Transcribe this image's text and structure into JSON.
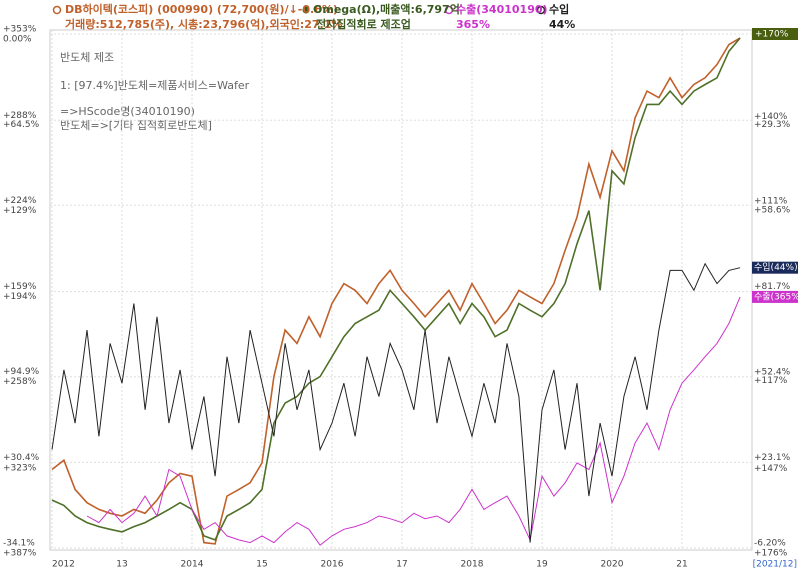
{
  "chart_data": {
    "type": "line",
    "annotations": [
      "반도체 제조",
      "1: [97.4%]반도체=제품서비스=Wafer",
      "=>HScode명(34010190)",
      "반도체=>[기타 집적회로반도체]"
    ],
    "period_label": "[2021/12]",
    "x": [
      2012,
      2012.17,
      2012.33,
      2012.5,
      2012.67,
      2012.83,
      2013,
      2013.17,
      2013.33,
      2013.5,
      2013.67,
      2013.83,
      2014,
      2014.17,
      2014.33,
      2014.5,
      2014.67,
      2014.83,
      2015,
      2015.17,
      2015.33,
      2015.5,
      2015.67,
      2015.83,
      2016,
      2016.17,
      2016.33,
      2016.5,
      2016.67,
      2016.83,
      2017,
      2017.17,
      2017.33,
      2017.5,
      2017.67,
      2017.83,
      2018,
      2018.17,
      2018.33,
      2018.5,
      2018.67,
      2018.83,
      2019,
      2019.17,
      2019.33,
      2019.5,
      2019.67,
      2019.83,
      2020,
      2020.17,
      2020.33,
      2020.5,
      2020.67,
      2020.83,
      2021,
      2021.17,
      2021.33,
      2021.5,
      2021.67,
      2021.83
    ],
    "xlim": [
      2012,
      2022
    ],
    "xticks": [
      2012,
      {
        "value": 2013,
        "label": "13"
      },
      2014,
      {
        "value": 2015,
        "label": "15"
      },
      2016,
      {
        "value": 2017,
        "label": "17"
      },
      2018,
      {
        "value": 2019,
        "label": "19"
      },
      2020,
      {
        "value": 2021,
        "label": "21"
      }
    ],
    "ylim": [
      -34.1,
      353
    ],
    "yticks": [
      {
        "value": -34.1,
        "label": "-34.1%"
      },
      {
        "value": 30.4,
        "label": "+30.4%"
      },
      {
        "value": 94.9,
        "label": "+94.9%"
      },
      {
        "value": 159,
        "label": "+159%"
      },
      {
        "value": 224,
        "label": "+224%"
      },
      {
        "value": 288,
        "label": "+288%"
      },
      {
        "value": 353,
        "label": "+353%"
      }
    ],
    "y2lim": [
      387,
      0
    ],
    "y2ticks": [
      {
        "value": 387,
        "label": "+387%"
      },
      {
        "value": 323,
        "label": "+323%"
      },
      {
        "value": 258,
        "label": "+258%"
      },
      {
        "value": 194,
        "label": "+194%"
      },
      {
        "value": 129,
        "label": "+129%"
      },
      {
        "value": 64.5,
        "label": "+64.5%"
      },
      {
        "value": 0,
        "label": "0.00%"
      }
    ],
    "right_ylim": [
      -6.2,
      170
    ],
    "right_yticks": [
      {
        "value": -6.2,
        "label": "-6.20%"
      },
      {
        "value": 23.1,
        "label": "+23.1%"
      },
      {
        "value": 52.4,
        "label": "+52.4%"
      },
      {
        "value": 81.7,
        "label": "+81.7%"
      },
      {
        "value": 111,
        "label": "+111%"
      },
      {
        "value": 140,
        "label": "+140%"
      },
      {
        "value": 170,
        "label": "+170%"
      }
    ],
    "right_y2lim": [
      176,
      0
    ],
    "right_y2ticks": [
      {
        "value": 176,
        "label": "+176%"
      },
      {
        "value": 147,
        "label": "+147%"
      },
      {
        "value": 117,
        "label": "+117%"
      },
      {
        "value": 58.6,
        "label": "+58.6%"
      },
      {
        "value": 29.3,
        "label": "+29.3%"
      }
    ],
    "grid": true,
    "series": [
      {
        "name": "DB하이텍(코스피) (000990) (72,700(원)/↓-0.6%)",
        "detail": "거래량:512,785(주), 시총:23,796(억),외국인:27.1%",
        "color": "#c0602a",
        "values": [
          25,
          32,
          10,
          0,
          -5,
          -8,
          -10,
          -5,
          -8,
          2,
          15,
          22,
          20,
          -30,
          -31,
          5,
          10,
          15,
          30,
          95,
          130,
          120,
          140,
          125,
          150,
          165,
          160,
          150,
          165,
          175,
          160,
          150,
          140,
          150,
          160,
          145,
          165,
          150,
          135,
          145,
          160,
          155,
          150,
          165,
          190,
          215,
          255,
          230,
          265,
          250,
          290,
          310,
          305,
          320,
          305,
          315,
          320,
          330,
          345,
          350
        ]
      },
      {
        "name": "Omega(Ω),매출액:6,797억",
        "detail": "전자집적회로 제조업",
        "color": "#4f7028",
        "values": [
          2,
          -2,
          -10,
          -15,
          -18,
          -20,
          -22,
          -18,
          -15,
          -10,
          -5,
          0,
          -5,
          -25,
          -28,
          -10,
          -5,
          0,
          10,
          60,
          75,
          80,
          90,
          95,
          110,
          125,
          135,
          140,
          145,
          160,
          150,
          140,
          130,
          140,
          150,
          135,
          150,
          140,
          125,
          130,
          150,
          145,
          140,
          150,
          165,
          195,
          220,
          160,
          250,
          240,
          275,
          300,
          300,
          310,
          300,
          310,
          315,
          320,
          340,
          350
        ]
      },
      {
        "name": "수출(34010190)",
        "detail": "365%",
        "end_label": "수출(365%)",
        "color": "#cc33cc",
        "values": [
          null,
          null,
          null,
          -10,
          -15,
          -5,
          -15,
          -8,
          5,
          -10,
          25,
          20,
          -5,
          -20,
          -15,
          -25,
          -28,
          -30,
          -25,
          -30,
          -22,
          -15,
          -20,
          -32,
          -25,
          -20,
          -18,
          -15,
          -10,
          -12,
          -15,
          -8,
          -12,
          -10,
          -15,
          -5,
          10,
          -5,
          0,
          5,
          -10,
          -28,
          20,
          5,
          15,
          30,
          25,
          45,
          0,
          20,
          45,
          60,
          40,
          70,
          90,
          100,
          110,
          120,
          135,
          155
        ]
      },
      {
        "name": "수입",
        "detail": "44%",
        "end_label": "수입(44%)",
        "color": "#222222",
        "values": [
          40,
          100,
          60,
          130,
          50,
          120,
          90,
          150,
          70,
          140,
          60,
          100,
          40,
          80,
          20,
          110,
          60,
          130,
          90,
          50,
          120,
          70,
          100,
          40,
          60,
          90,
          50,
          110,
          80,
          120,
          100,
          70,
          130,
          60,
          110,
          80,
          50,
          90,
          60,
          120,
          80,
          -30,
          70,
          100,
          40,
          90,
          5,
          60,
          20,
          80,
          110,
          70,
          130,
          175,
          175,
          160,
          180,
          165,
          175,
          177
        ]
      }
    ]
  }
}
